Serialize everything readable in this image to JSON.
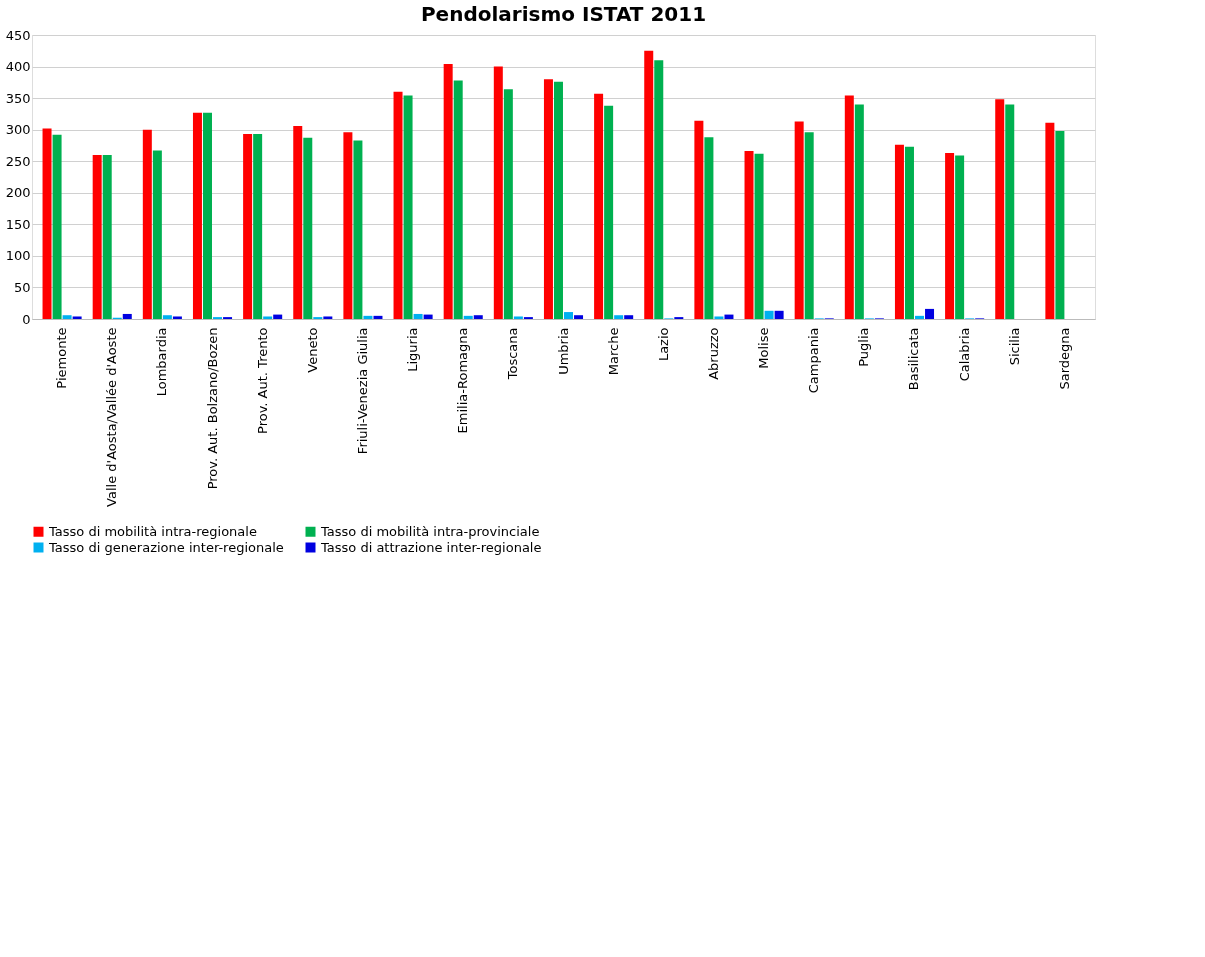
{
  "chart_data": {
    "type": "bar",
    "title": "Pendolarismo ISTAT 2011",
    "categories": [
      "Piemonte",
      "Valle d'Aosta/Vallée d'Aoste",
      "Lombardia",
      "Prov. Aut. Bolzano/Bozen",
      "Prov. Aut. Trento",
      "Veneto",
      "Friuli-Venezia Giulia",
      "Liguria",
      "Emilia-Romagna",
      "Toscana",
      "Umbria",
      "Marche",
      "Lazio",
      "Abruzzo",
      "Molise",
      "Campania",
      "Puglia",
      "Basilicata",
      "Calabria",
      "Sicilia",
      "Sardegna"
    ],
    "series": [
      {
        "name": "Tasso di mobilità intra-regionale",
        "color": "#ff0000",
        "values": [
          302,
          260,
          300,
          327,
          293,
          306,
          296,
          360,
          404,
          400,
          380,
          357,
          425,
          314,
          266,
          313,
          354,
          276,
          263,
          348,
          311
        ]
      },
      {
        "name": "Tasso di mobilità intra-provinciale",
        "color": "#00b050",
        "values": [
          292,
          260,
          267,
          327,
          293,
          287,
          283,
          354,
          378,
          364,
          376,
          338,
          410,
          288,
          262,
          296,
          340,
          273,
          259,
          340,
          298
        ]
      },
      {
        "name": "Tasso di generazione inter-regionale",
        "color": "#00b0f0",
        "values": [
          6,
          2,
          6,
          3,
          4,
          3,
          5,
          8,
          5,
          4,
          11,
          6,
          1,
          4,
          13,
          1,
          1,
          5,
          1,
          0,
          0
        ]
      },
      {
        "name": "Tasso di attrazione inter-regionale",
        "color": "#0000e0",
        "values": [
          4,
          8,
          4,
          3,
          7,
          4,
          5,
          7,
          6,
          3,
          6,
          6,
          3,
          7,
          13,
          1,
          1,
          16,
          1,
          0,
          0
        ]
      }
    ],
    "ylim": [
      0,
      450
    ],
    "yticks": [
      0,
      50,
      100,
      150,
      200,
      250,
      300,
      350,
      400,
      450
    ],
    "grid": "y",
    "legend": "bottom"
  }
}
